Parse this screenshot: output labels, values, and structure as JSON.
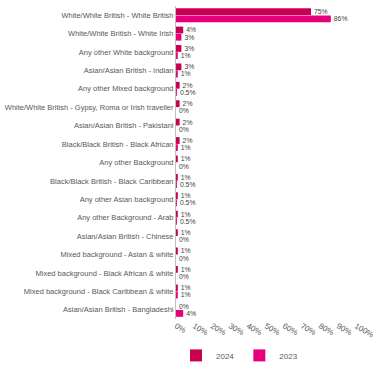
{
  "chart_data": {
    "type": "bar",
    "orientation": "horizontal",
    "data_labels": true,
    "grid": false,
    "legend": "bottom-left",
    "categories": [
      "White/White British - White British",
      "White/White British - White Irish",
      "Any other White background",
      "Asian/Asian British - Indian",
      "Any other Mixed background",
      "White/White British - Gypsy, Roma or Irish traveller",
      "Asian/Asian British - Pakistani",
      "Black/Black British - Black African",
      "Any other Background",
      "Black/Black British - Black Caribbean",
      "Any other Asian background",
      "Any other Background - Arab",
      "Asian/Asian British - Chinese",
      "Mixed background - Asian & white",
      "Mixed background - Black African & white",
      "Mixed background - Black Caribbean & white",
      "Asian/Asian British - Bangladeshi"
    ],
    "series": [
      {
        "name": "2024",
        "color": "#c9004f",
        "values": [
          75,
          4,
          3,
          3,
          2,
          2,
          2,
          2,
          1,
          1,
          1,
          1,
          1,
          1,
          1,
          1,
          0
        ],
        "value_labels": [
          "75%",
          "4%",
          "3%",
          "3%",
          "2%",
          "2%",
          "2%",
          "2%",
          "1%",
          "1%",
          "1%",
          "1%",
          "1%",
          "1%",
          "1%",
          "1%",
          "0%"
        ]
      },
      {
        "name": "2023",
        "color": "#e6007e",
        "values": [
          86,
          3,
          1,
          1,
          0.5,
          0,
          0,
          1,
          0,
          0.5,
          0.5,
          0.5,
          0,
          0,
          0,
          1,
          4
        ],
        "value_labels": [
          "86%",
          "3%",
          "1%",
          "1%",
          "0.5%",
          "0%",
          "0%",
          "1%",
          "0%",
          "0.5%",
          "0.5%",
          "0.5%",
          "0%",
          "0%",
          "0%",
          "1%",
          "4%"
        ]
      }
    ],
    "xlim": [
      0,
      100
    ],
    "xticks": [
      {
        "value": 0,
        "label": "0%"
      },
      {
        "value": 10,
        "label": "10%"
      },
      {
        "value": 20,
        "label": "20%"
      },
      {
        "value": 30,
        "label": "30%"
      },
      {
        "value": 40,
        "label": "40%"
      },
      {
        "value": 50,
        "label": "50%"
      },
      {
        "value": 60,
        "label": "60%"
      },
      {
        "value": 70,
        "label": "70%"
      },
      {
        "value": 80,
        "label": "80%"
      },
      {
        "value": 90,
        "label": "90%"
      },
      {
        "value": 100,
        "label": "100%"
      }
    ]
  }
}
